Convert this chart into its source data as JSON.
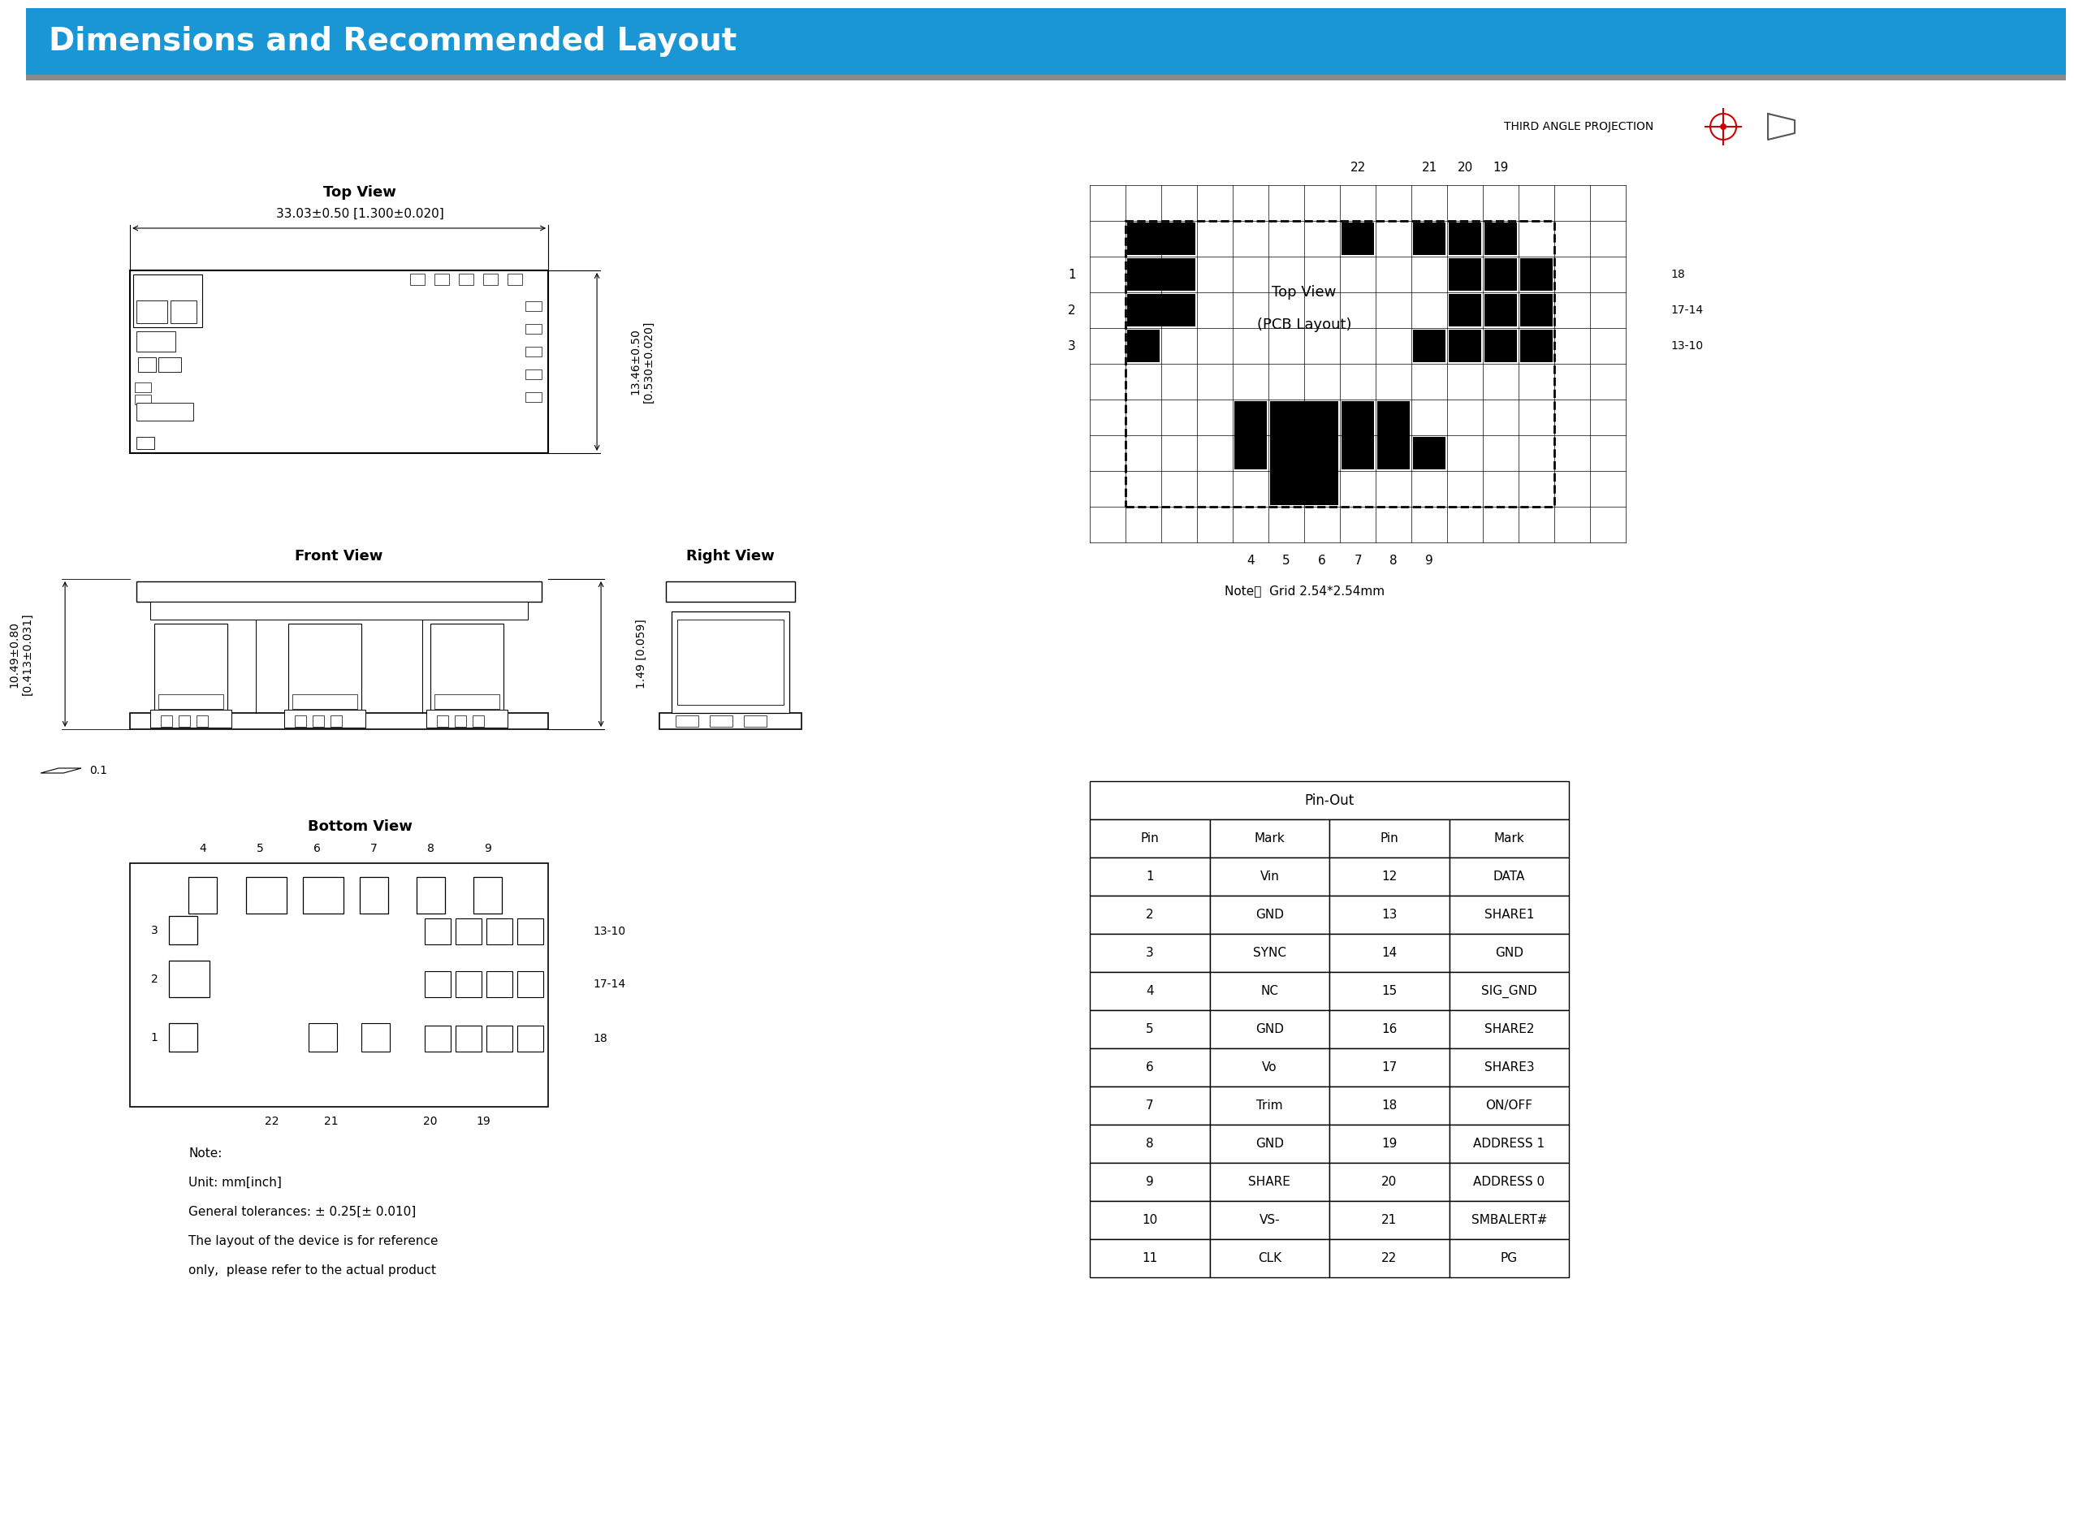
{
  "title": "Dimensions and Recommended Layout",
  "title_bg": "#1a96d4",
  "title_text_color": "#ffffff",
  "bg_color": "#ffffff",
  "pin_out_header": "Pin-Out",
  "pin_out_cols": [
    "Pin",
    "Mark",
    "Pin",
    "Mark"
  ],
  "pin_out_data": [
    [
      "1",
      "Vin",
      "12",
      "DATA"
    ],
    [
      "2",
      "GND",
      "13",
      "SHARE1"
    ],
    [
      "3",
      "SYNC",
      "14",
      "GND"
    ],
    [
      "4",
      "NC",
      "15",
      "SIG_GND"
    ],
    [
      "5",
      "GND",
      "16",
      "SHARE2"
    ],
    [
      "6",
      "Vo",
      "17",
      "SHARE3"
    ],
    [
      "7",
      "Trim",
      "18",
      "ON/OFF"
    ],
    [
      "8",
      "GND",
      "19",
      "ADDRESS 1"
    ],
    [
      "9",
      "SHARE",
      "20",
      "ADDRESS 0"
    ],
    [
      "10",
      "VS-",
      "21",
      "SMBALERT#"
    ],
    [
      "11",
      "CLK",
      "22",
      "PG"
    ]
  ],
  "top_view_label": "Top View",
  "front_view_label": "Front View",
  "right_view_label": "Right View",
  "bottom_view_label": "Bottom View",
  "pcb_label1": "Top View",
  "pcb_label2": "(PCB Layout)",
  "grid_note": "Note：  Grid 2.54*2.54mm",
  "third_angle": "THIRD ANGLE PROJECTION",
  "note_text": "Note:\nUnit: mm[inch]\nGeneral tolerances: ± 0.25[± 0.010]\nThe layout of the device is for reference\nonly,  please refer to the actual product",
  "dim_width": "33.03±0.50 [1.300±0.020]",
  "dim_height_label": "13.46±0.50\n[0.530±0.020]",
  "dim_side_label": "10.49±0.80\n[0.413±0.031]",
  "dim_front_h": "1.49 [0.059]",
  "dim_flatness": "0.1"
}
